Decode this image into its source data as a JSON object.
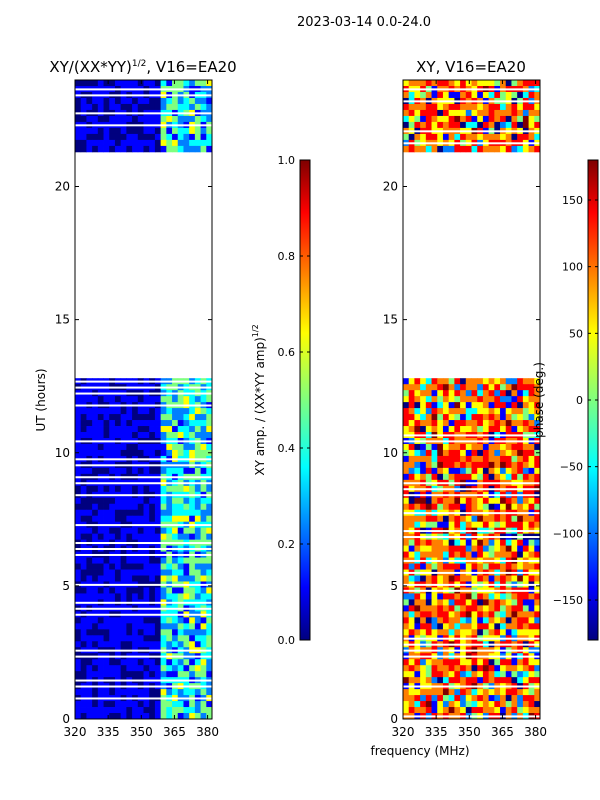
{
  "suptitle": "2023-03-14 0.0-24.0",
  "xlabel": "frequency (MHz)",
  "chart_data": [
    {
      "type": "heatmap",
      "title_base": "XY/(XX*YY)",
      "title_exp": "1/2",
      "title_suffix": ", V16=EA20",
      "ylabel": "UT (hours)",
      "xlim": [
        320,
        382
      ],
      "ylim": [
        0,
        24
      ],
      "xticks": [
        320,
        335,
        350,
        365,
        380
      ],
      "yticks": [
        0,
        5,
        10,
        15,
        20
      ],
      "colorbar": {
        "label_base": "XY amp. / (XX*YY amp)",
        "label_exp": "1/2",
        "range": [
          0.0,
          1.0
        ],
        "ticks": [
          0.0,
          0.2,
          0.4,
          0.6,
          0.8,
          1.0
        ],
        "tick_labels": [
          "0.0",
          "0.2",
          "0.4",
          "0.6",
          "0.8",
          "1.0"
        ]
      },
      "data_time_ranges_hours": [
        [
          0.0,
          12.8
        ],
        [
          21.3,
          24.0
        ]
      ],
      "gap_hours": [
        12.8,
        21.3
      ],
      "description_values": {
        "below_360MHz": 0.05,
        "360_to_382MHz": [
          0.3,
          0.55
        ]
      }
    },
    {
      "type": "heatmap",
      "title": "XY, V16=EA20",
      "ylabel": "",
      "xlim": [
        320,
        382
      ],
      "ylim": [
        0,
        24
      ],
      "xticks": [
        320,
        335,
        350,
        365,
        380
      ],
      "yticks": [
        0,
        5,
        10,
        15,
        20
      ],
      "colorbar": {
        "label": "phase (deg.)",
        "range": [
          -180,
          180
        ],
        "ticks": [
          -150,
          -100,
          -50,
          0,
          50,
          100,
          150
        ],
        "tick_labels": [
          "−150",
          "−100",
          "−50",
          "0",
          "50",
          "100",
          "150"
        ]
      },
      "data_time_ranges_hours": [
        [
          0.0,
          12.8
        ],
        [
          21.3,
          24.0
        ]
      ],
      "gap_hours": [
        12.8,
        21.3
      ]
    }
  ],
  "colors": {
    "jet": [
      "#00007f",
      "#0000ff",
      "#007fff",
      "#00ffff",
      "#7fff7f",
      "#ffff00",
      "#ff7f00",
      "#ff0000",
      "#7f0000"
    ]
  }
}
